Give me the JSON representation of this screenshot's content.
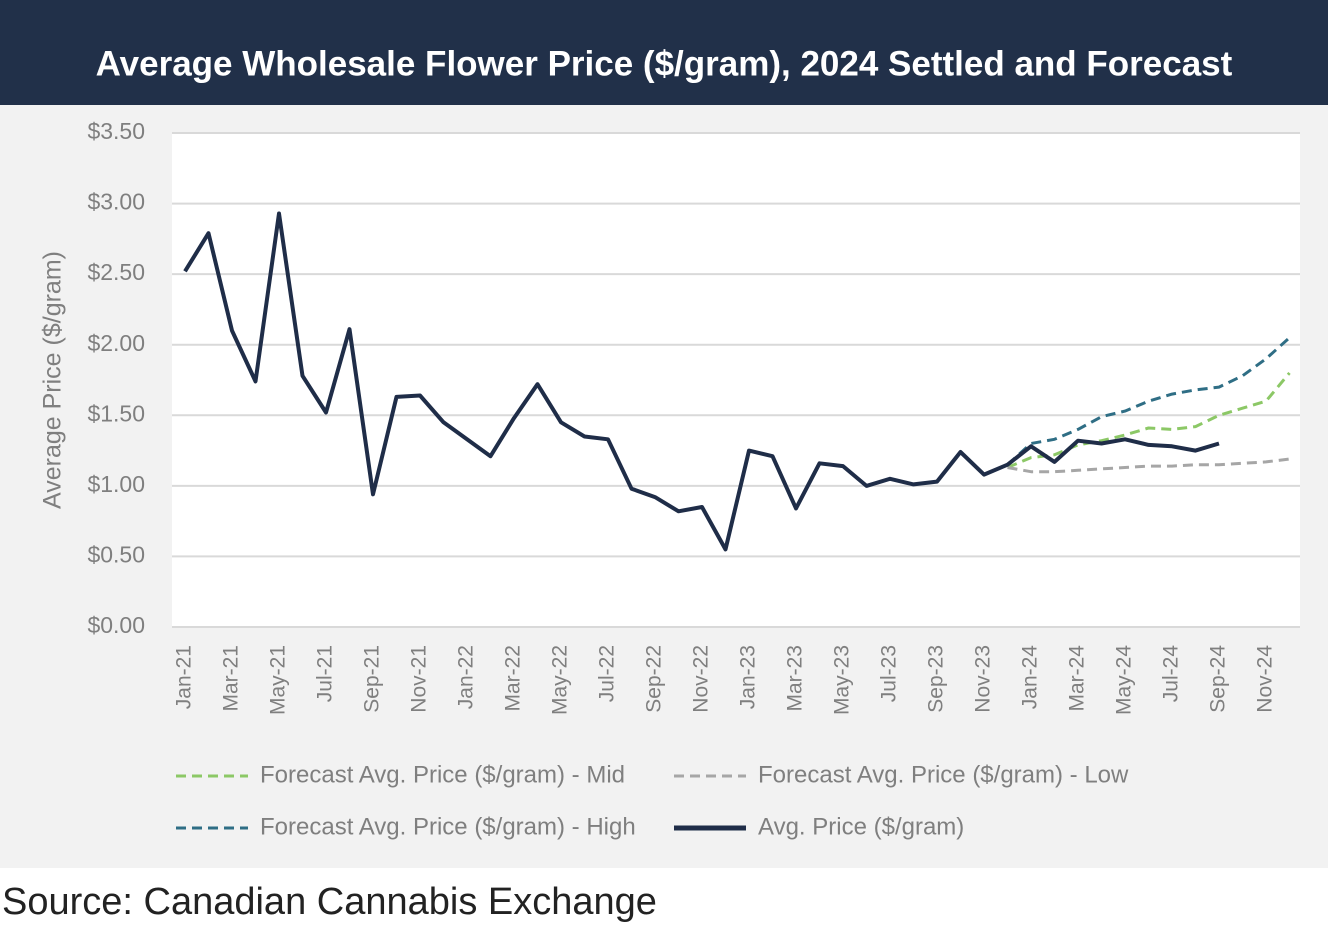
{
  "chart_data": {
    "type": "line",
    "title": "Average Wholesale Flower Price ($/gram), 2024 Settled and Forecast",
    "y_label": "Average Price ($/gram)",
    "source": "Source: Canadian Cannabis Exchange",
    "categories": [
      "Jan-21",
      null,
      "Mar-21",
      null,
      "May-21",
      null,
      "Jul-21",
      null,
      "Sep-21",
      null,
      "Nov-21",
      null,
      "Jan-22",
      null,
      "Mar-22",
      null,
      "May-22",
      null,
      "Jul-22",
      null,
      "Sep-22",
      null,
      "Nov-22",
      null,
      "Jan-23",
      null,
      "Mar-23",
      null,
      "May-23",
      null,
      "Jul-23",
      null,
      "Sep-23",
      null,
      "Nov-23",
      null,
      "Jan-24",
      null,
      "Mar-24",
      null,
      "May-24",
      null,
      "Jul-24",
      null,
      "Sep-24",
      null,
      "Nov-24",
      null
    ],
    "ylim": [
      0,
      3.5
    ],
    "yticks": [
      {
        "value": 0,
        "label": "$0.00"
      },
      {
        "value": 0.5,
        "label": "$0.50"
      },
      {
        "value": 1,
        "label": "$1.00"
      },
      {
        "value": 1.5,
        "label": "$1.50"
      },
      {
        "value": 2,
        "label": "$2.00"
      },
      {
        "value": 2.5,
        "label": "$2.50"
      },
      {
        "value": 3,
        "label": "$3.00"
      },
      {
        "value": 3.5,
        "label": "$3.50"
      }
    ],
    "grid": true,
    "legend": "bottom",
    "series": [
      {
        "name": "Forecast Avg. Price ($/gram) - Mid",
        "color": "#8cc866",
        "line_style": "dashed",
        "values": [
          null,
          null,
          null,
          null,
          null,
          null,
          null,
          null,
          null,
          null,
          null,
          null,
          null,
          null,
          null,
          null,
          null,
          null,
          null,
          null,
          null,
          null,
          null,
          null,
          null,
          null,
          null,
          null,
          null,
          null,
          null,
          null,
          null,
          null,
          null,
          1.13,
          1.2,
          1.22,
          1.29,
          1.32,
          1.36,
          1.41,
          1.4,
          1.42,
          1.5,
          1.55,
          1.6,
          1.8
        ]
      },
      {
        "name": "Forecast Avg. Price ($/gram) - Low",
        "color": "#a6a6a6",
        "line_style": "dashed",
        "values": [
          null,
          null,
          null,
          null,
          null,
          null,
          null,
          null,
          null,
          null,
          null,
          null,
          null,
          null,
          null,
          null,
          null,
          null,
          null,
          null,
          null,
          null,
          null,
          null,
          null,
          null,
          null,
          null,
          null,
          null,
          null,
          null,
          null,
          null,
          null,
          1.13,
          1.1,
          1.1,
          1.11,
          1.12,
          1.13,
          1.14,
          1.14,
          1.15,
          1.15,
          1.16,
          1.17,
          1.19
        ]
      },
      {
        "name": "Forecast Avg. Price ($/gram) - High",
        "color": "#2f6e85",
        "line_style": "dashed",
        "values": [
          null,
          null,
          null,
          null,
          null,
          null,
          null,
          null,
          null,
          null,
          null,
          null,
          null,
          null,
          null,
          null,
          null,
          null,
          null,
          null,
          null,
          null,
          null,
          null,
          null,
          null,
          null,
          null,
          null,
          null,
          null,
          null,
          null,
          null,
          null,
          1.15,
          1.3,
          1.33,
          1.4,
          1.49,
          1.53,
          1.6,
          1.65,
          1.68,
          1.7,
          1.78,
          1.9,
          2.05
        ]
      },
      {
        "name": "Avg. Price ($/gram)",
        "color": "#1f2d48",
        "line_style": "solid",
        "values": [
          2.52,
          2.79,
          2.1,
          1.74,
          2.93,
          1.78,
          1.52,
          2.11,
          0.94,
          1.63,
          1.64,
          1.45,
          1.33,
          1.21,
          1.48,
          1.72,
          1.45,
          1.35,
          1.33,
          0.98,
          0.92,
          0.82,
          0.85,
          0.55,
          1.25,
          1.21,
          0.84,
          1.16,
          1.14,
          1.0,
          1.05,
          1.01,
          1.03,
          1.24,
          1.08,
          1.15,
          1.28,
          1.17,
          1.32,
          1.3,
          1.33,
          1.29,
          1.28,
          1.25,
          1.3,
          null,
          null,
          null
        ]
      }
    ]
  }
}
